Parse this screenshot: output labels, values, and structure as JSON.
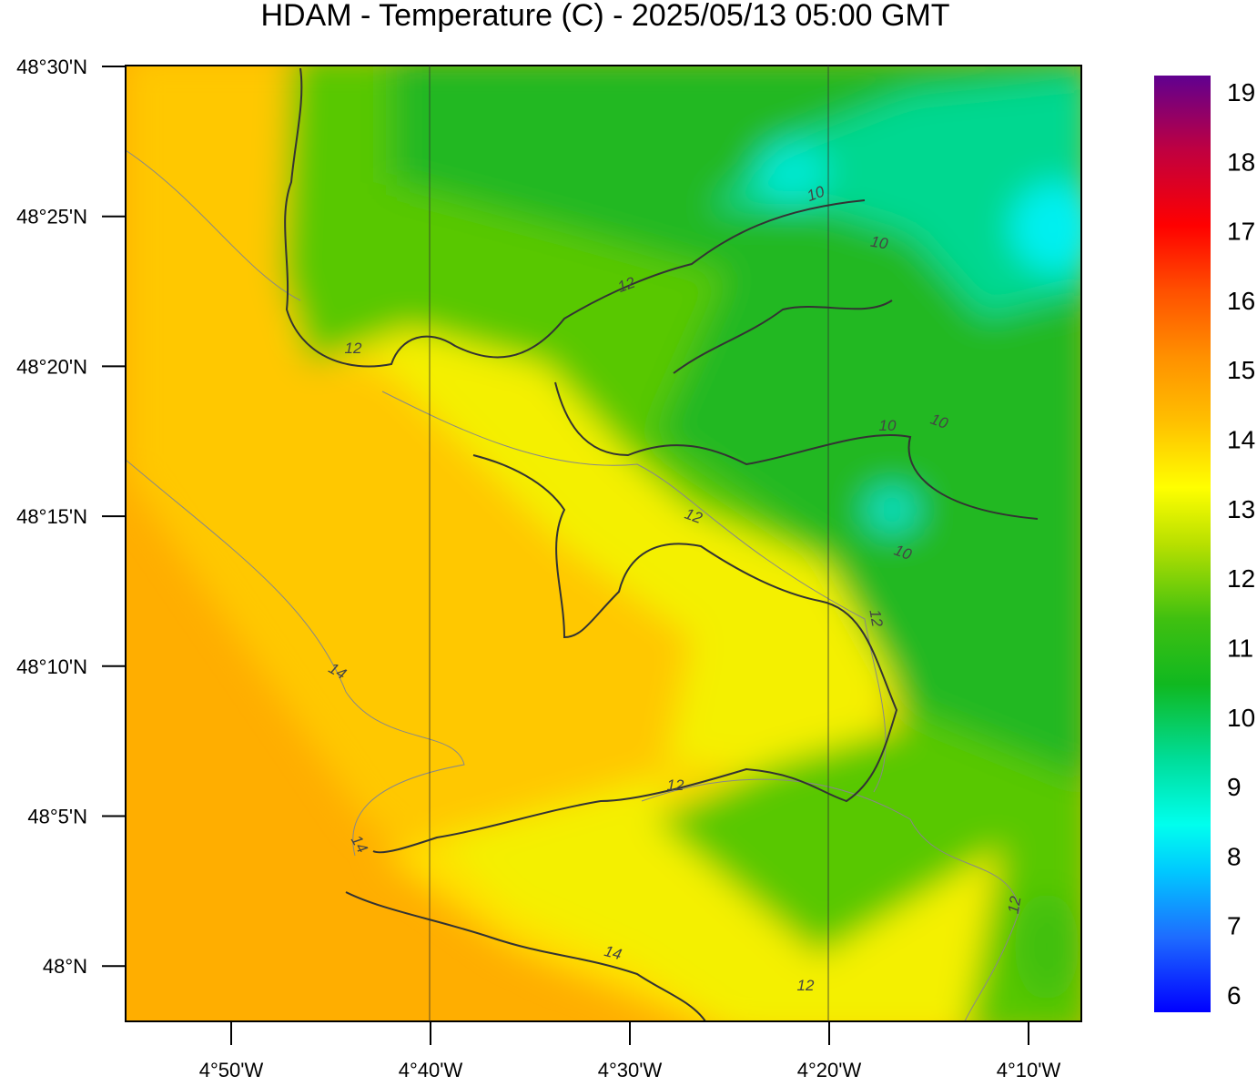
{
  "title": "HDAM - Temperature (C)  -  2025/05/13  05:00 GMT",
  "lat_ticks": [
    "48°30'N",
    "48°25'N",
    "48°20'N",
    "48°15'N",
    "48°10'N",
    "48°5'N",
    "48°N"
  ],
  "lon_ticks": [
    "4°50'W",
    "4°40'W",
    "4°30'W",
    "4°20'W",
    "4°10'W"
  ],
  "colorbar": {
    "labels": [
      "19",
      "18",
      "17",
      "16",
      "15",
      "14",
      "13",
      "12",
      "11",
      "10",
      "9",
      "8",
      "7",
      "6"
    ]
  },
  "contour_labels": [
    "10",
    "10",
    "12",
    "12",
    "10",
    "10",
    "12",
    "10",
    "12",
    "14",
    "12",
    "14",
    "14",
    "12",
    "12"
  ]
}
